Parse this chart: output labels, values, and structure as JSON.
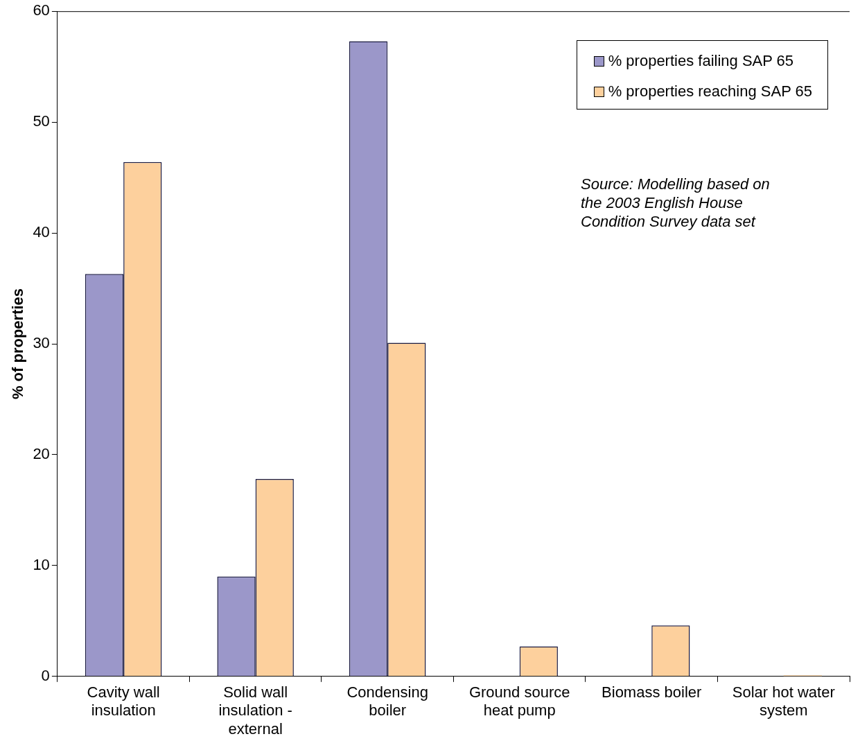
{
  "chart_data": {
    "type": "bar",
    "ylabel": "% of properties",
    "categories": [
      "Cavity wall insulation",
      "Solid wall insulation - external",
      "Condensing boiler",
      "Ground source heat pump",
      "Biomass boiler",
      "Solar hot water system"
    ],
    "series": [
      {
        "name": "% properties failing SAP 65",
        "color": "#9b97c9",
        "values": [
          36.3,
          9.0,
          57.3,
          0,
          0,
          0
        ]
      },
      {
        "name": "% properties reaching SAP 65",
        "color": "#fdd09d",
        "values": [
          46.4,
          17.8,
          30.1,
          2.7,
          4.6,
          0.1
        ]
      }
    ],
    "ylim": [
      0,
      60
    ],
    "yticks": [
      0,
      10,
      20,
      30,
      40,
      50,
      60
    ],
    "grid": false,
    "legend": "top right",
    "annotations": [
      "Source: Modelling based on the 2003 English House Condition Survey data set"
    ]
  }
}
